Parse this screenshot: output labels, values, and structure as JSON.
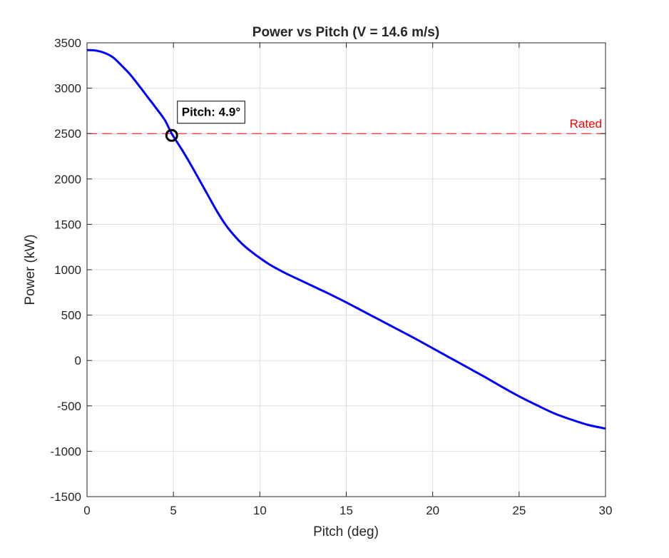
{
  "chart_data": {
    "type": "line",
    "title": "Power vs Pitch (V = 14.6 m/s)",
    "xlabel": "Pitch (deg)",
    "ylabel": "Power (kW)",
    "xlim": [
      0,
      30
    ],
    "ylim": [
      -1500,
      3500
    ],
    "xticks": [
      0,
      5,
      10,
      15,
      20,
      25,
      30
    ],
    "yticks": [
      -1500,
      -1000,
      -500,
      0,
      500,
      1000,
      1500,
      2000,
      2500,
      3000,
      3500
    ],
    "grid": true,
    "series": [
      {
        "color": "#0000ff",
        "x": [
          0,
          0.5,
          1,
          1.5,
          2,
          2.5,
          3,
          3.5,
          4,
          4.5,
          4.9,
          5.5,
          6,
          6.5,
          7,
          7.5,
          8,
          8.5,
          9,
          9.5,
          10,
          10.5,
          11,
          11.5,
          12,
          12.5,
          13,
          13.5,
          14,
          15,
          16,
          17,
          18,
          19,
          20,
          21,
          22,
          23,
          24,
          25,
          26,
          27,
          28,
          29,
          30
        ],
        "y": [
          3420,
          3415,
          3390,
          3340,
          3250,
          3150,
          3030,
          2905,
          2780,
          2650,
          2500,
          2320,
          2160,
          1990,
          1820,
          1650,
          1500,
          1380,
          1280,
          1200,
          1130,
          1065,
          1010,
          960,
          915,
          870,
          825,
          780,
          735,
          640,
          540,
          440,
          340,
          240,
          135,
          30,
          -75,
          -180,
          -290,
          -395,
          -490,
          -580,
          -650,
          -710,
          -750
        ]
      }
    ],
    "reference_line": {
      "y": 2500,
      "label": "Rated",
      "color": "#ff0000",
      "style": "dashed"
    },
    "marker": {
      "x": 4.9,
      "y": 2480,
      "label": "Pitch: 4.9°"
    }
  }
}
